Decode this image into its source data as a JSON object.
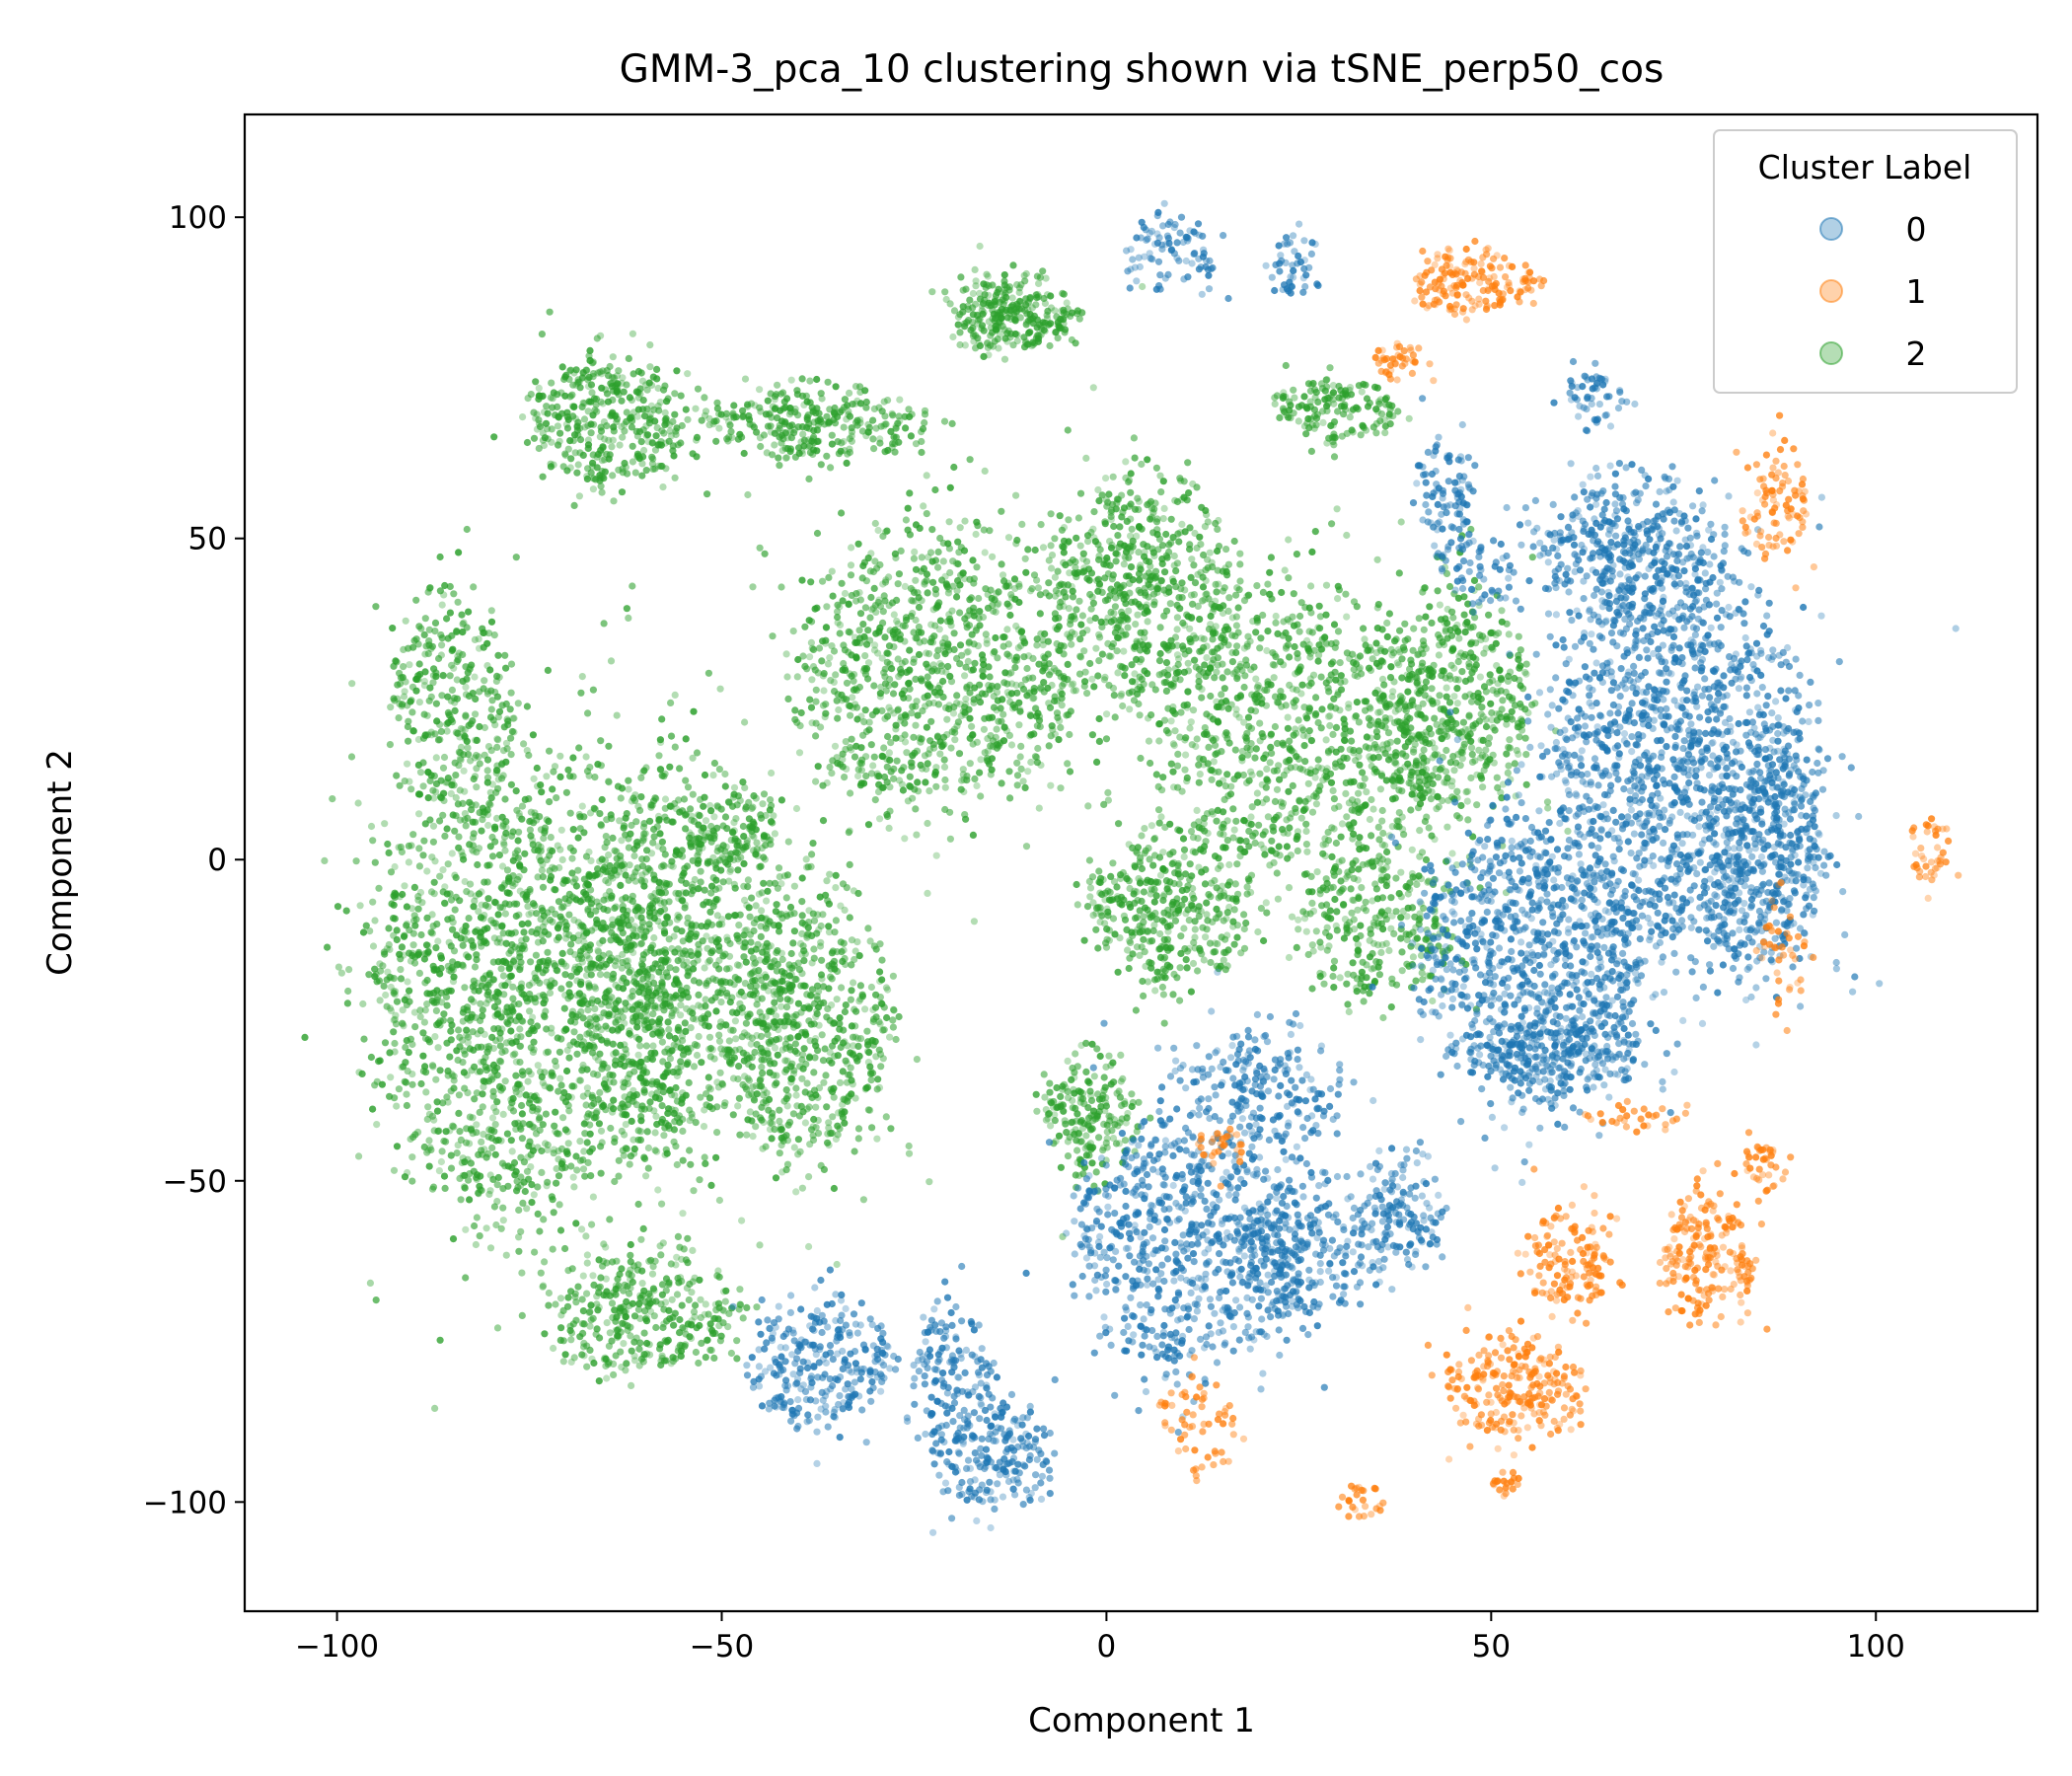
{
  "chart_data": {
    "type": "scatter",
    "title": "GMM-3_pca_10 clustering shown via tSNE_perp50_cos",
    "xlabel": "Component 1",
    "ylabel": "Component 2",
    "xlim": [
      -112,
      121
    ],
    "ylim": [
      -117,
      116
    ],
    "xticks": [
      -100,
      -50,
      0,
      50,
      100
    ],
    "xtick_labels": [
      "−100",
      "−50",
      "0",
      "50",
      "100"
    ],
    "yticks": [
      -100,
      -50,
      0,
      50,
      100
    ],
    "ytick_labels": [
      "−100",
      "−50",
      "0",
      "50",
      "100"
    ],
    "grid": false,
    "legend": {
      "title": "Cluster Label",
      "placement": "top-right",
      "entries": [
        "0",
        "1",
        "2"
      ]
    },
    "series": [
      {
        "name": "0",
        "color": "#1f77b4",
        "regions": [
          {
            "cx": 75,
            "cy": 15,
            "rx": 17,
            "ry": 30,
            "n": 1400
          },
          {
            "cx": 55,
            "cy": -15,
            "rx": 14,
            "ry": 22,
            "n": 900
          },
          {
            "cx": 68,
            "cy": 48,
            "rx": 12,
            "ry": 12,
            "n": 420
          },
          {
            "cx": 85,
            "cy": 0,
            "rx": 8,
            "ry": 18,
            "n": 360
          },
          {
            "cx": 10,
            "cy": -60,
            "rx": 14,
            "ry": 20,
            "n": 700
          },
          {
            "cx": 25,
            "cy": -60,
            "rx": 8,
            "ry": 12,
            "n": 260
          },
          {
            "cx": 38,
            "cy": -55,
            "rx": 6,
            "ry": 10,
            "n": 160
          },
          {
            "cx": -37,
            "cy": -78,
            "rx": 9,
            "ry": 10,
            "n": 280
          },
          {
            "cx": -15,
            "cy": -92,
            "rx": 8,
            "ry": 9,
            "n": 230
          },
          {
            "cx": -20,
            "cy": -78,
            "rx": 5,
            "ry": 10,
            "n": 120
          },
          {
            "cx": 8,
            "cy": 94,
            "rx": 6,
            "ry": 6,
            "n": 90
          },
          {
            "cx": 24,
            "cy": 92,
            "rx": 3,
            "ry": 5,
            "n": 45
          },
          {
            "cx": 44,
            "cy": 58,
            "rx": 4,
            "ry": 8,
            "n": 90
          },
          {
            "cx": 64,
            "cy": 72,
            "rx": 4,
            "ry": 4,
            "n": 50
          },
          {
            "cx": 48,
            "cy": 45,
            "rx": 5,
            "ry": 6,
            "n": 60
          },
          {
            "cx": 60,
            "cy": -30,
            "rx": 10,
            "ry": 8,
            "n": 220
          },
          {
            "cx": 20,
            "cy": -35,
            "rx": 10,
            "ry": 10,
            "n": 220
          }
        ]
      },
      {
        "name": "1",
        "color": "#ff7f0e",
        "regions": [
          {
            "cx": 48,
            "cy": 90,
            "rx": 8,
            "ry": 5,
            "n": 160
          },
          {
            "cx": 38,
            "cy": 78,
            "rx": 3,
            "ry": 3,
            "n": 40
          },
          {
            "cx": 87,
            "cy": 55,
            "rx": 4,
            "ry": 10,
            "n": 90
          },
          {
            "cx": 107,
            "cy": 2,
            "rx": 3,
            "ry": 5,
            "n": 40
          },
          {
            "cx": 53,
            "cy": -82,
            "rx": 9,
            "ry": 8,
            "n": 240
          },
          {
            "cx": 78,
            "cy": -62,
            "rx": 6,
            "ry": 10,
            "n": 200
          },
          {
            "cx": 60,
            "cy": -62,
            "rx": 6,
            "ry": 8,
            "n": 140
          },
          {
            "cx": 86,
            "cy": -48,
            "rx": 3,
            "ry": 4,
            "n": 40
          },
          {
            "cx": 12,
            "cy": -88,
            "rx": 5,
            "ry": 8,
            "n": 60
          },
          {
            "cx": 33,
            "cy": -100,
            "rx": 3,
            "ry": 3,
            "n": 25
          },
          {
            "cx": 52,
            "cy": -97,
            "rx": 2,
            "ry": 2,
            "n": 20
          },
          {
            "cx": 15,
            "cy": -45,
            "rx": 3,
            "ry": 4,
            "n": 30
          },
          {
            "cx": 70,
            "cy": -40,
            "rx": 8,
            "ry": 3,
            "n": 30
          },
          {
            "cx": 88,
            "cy": -15,
            "rx": 3,
            "ry": 10,
            "n": 40
          }
        ]
      },
      {
        "name": "2",
        "color": "#2ca02c",
        "regions": [
          {
            "cx": -75,
            "cy": -20,
            "rx": 20,
            "ry": 35,
            "n": 1800
          },
          {
            "cx": -55,
            "cy": -15,
            "rx": 14,
            "ry": 30,
            "n": 1000
          },
          {
            "cx": -38,
            "cy": -25,
            "rx": 10,
            "ry": 22,
            "n": 550
          },
          {
            "cx": -85,
            "cy": 25,
            "rx": 8,
            "ry": 18,
            "n": 300
          },
          {
            "cx": -65,
            "cy": 68,
            "rx": 10,
            "ry": 10,
            "n": 380
          },
          {
            "cx": -38,
            "cy": 68,
            "rx": 14,
            "ry": 6,
            "n": 300
          },
          {
            "cx": -22,
            "cy": 30,
            "rx": 18,
            "ry": 22,
            "n": 1000
          },
          {
            "cx": 5,
            "cy": 42,
            "rx": 12,
            "ry": 18,
            "n": 600
          },
          {
            "cx": 25,
            "cy": 20,
            "rx": 18,
            "ry": 22,
            "n": 900
          },
          {
            "cx": 8,
            "cy": -8,
            "rx": 10,
            "ry": 12,
            "n": 380
          },
          {
            "cx": -12,
            "cy": 85,
            "rx": 8,
            "ry": 6,
            "n": 280
          },
          {
            "cx": 45,
            "cy": 25,
            "rx": 10,
            "ry": 18,
            "n": 500
          },
          {
            "cx": 35,
            "cy": -10,
            "rx": 10,
            "ry": 12,
            "n": 300
          },
          {
            "cx": 30,
            "cy": 70,
            "rx": 8,
            "ry": 5,
            "n": 150
          },
          {
            "cx": -2,
            "cy": -40,
            "rx": 6,
            "ry": 10,
            "n": 200
          },
          {
            "cx": -60,
            "cy": -70,
            "rx": 12,
            "ry": 10,
            "n": 350
          },
          {
            "cx": -48,
            "cy": 5,
            "rx": 5,
            "ry": 8,
            "n": 90
          }
        ]
      }
    ],
    "stray_points": {
      "color": "#7f7f7f"
    }
  }
}
